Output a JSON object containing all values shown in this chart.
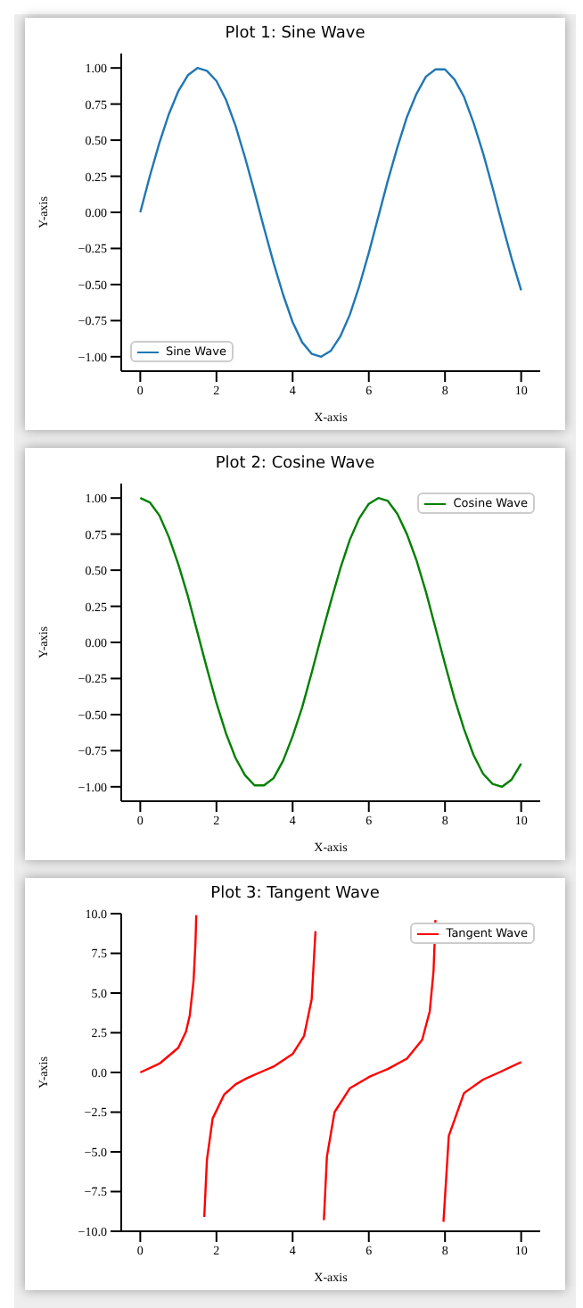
{
  "chart_data": [
    {
      "type": "line",
      "title": "Plot 1: Sine Wave",
      "xlabel": "X-axis",
      "ylabel": "Y-axis",
      "legend": "bottom left",
      "xlim": [
        -0.5,
        10.5
      ],
      "xticks": [
        0,
        2,
        4,
        6,
        8,
        10
      ],
      "ylim": [
        -1.1,
        1.1
      ],
      "yticks": [
        {
          "value": -1,
          "label": "−1.00"
        },
        {
          "value": -0.75,
          "label": "−0.75"
        },
        {
          "value": -0.5,
          "label": "−0.50"
        },
        {
          "value": -0.25,
          "label": "−0.25"
        },
        {
          "value": 0,
          "label": "0.00"
        },
        {
          "value": 0.25,
          "label": "0.25"
        },
        {
          "value": 0.5,
          "label": "0.50"
        },
        {
          "value": 0.75,
          "label": "0.75"
        },
        {
          "value": 1,
          "label": "1.00"
        }
      ],
      "series": [
        {
          "name": "Sine Wave",
          "color": "#1f77b4",
          "x": [
            0,
            0.25,
            0.5,
            0.75,
            1,
            1.25,
            1.5,
            1.75,
            2,
            2.25,
            2.5,
            2.75,
            3,
            3.25,
            3.5,
            3.75,
            4,
            4.25,
            4.5,
            4.75,
            5,
            5.25,
            5.5,
            5.75,
            6,
            6.25,
            6.5,
            6.75,
            7,
            7.25,
            7.5,
            7.75,
            8,
            8.25,
            8.5,
            8.75,
            9,
            9.25,
            9.5,
            9.75,
            10
          ],
          "values": [
            0,
            0.25,
            0.48,
            0.68,
            0.84,
            0.95,
            1.0,
            0.98,
            0.91,
            0.78,
            0.6,
            0.38,
            0.14,
            -0.11,
            -0.35,
            -0.57,
            -0.76,
            -0.9,
            -0.98,
            -1.0,
            -0.96,
            -0.86,
            -0.71,
            -0.51,
            -0.28,
            -0.03,
            0.22,
            0.45,
            0.66,
            0.82,
            0.94,
            0.99,
            0.99,
            0.92,
            0.8,
            0.62,
            0.41,
            0.17,
            -0.08,
            -0.32,
            -0.54
          ]
        }
      ]
    },
    {
      "type": "line",
      "title": "Plot 2: Cosine Wave",
      "xlabel": "X-axis",
      "ylabel": "Y-axis",
      "legend": "top right",
      "xlim": [
        -0.5,
        10.5
      ],
      "xticks": [
        0,
        2,
        4,
        6,
        8,
        10
      ],
      "ylim": [
        -1.1,
        1.1
      ],
      "yticks": [
        {
          "value": -1,
          "label": "−1.00"
        },
        {
          "value": -0.75,
          "label": "−0.75"
        },
        {
          "value": -0.5,
          "label": "−0.50"
        },
        {
          "value": -0.25,
          "label": "−0.25"
        },
        {
          "value": 0,
          "label": "0.00"
        },
        {
          "value": 0.25,
          "label": "0.25"
        },
        {
          "value": 0.5,
          "label": "0.50"
        },
        {
          "value": 0.75,
          "label": "0.75"
        },
        {
          "value": 1,
          "label": "1.00"
        }
      ],
      "series": [
        {
          "name": "Cosine Wave",
          "color": "#008000",
          "x": [
            0,
            0.25,
            0.5,
            0.75,
            1,
            1.25,
            1.5,
            1.75,
            2,
            2.25,
            2.5,
            2.75,
            3,
            3.25,
            3.5,
            3.75,
            4,
            4.25,
            4.5,
            4.75,
            5,
            5.25,
            5.5,
            5.75,
            6,
            6.25,
            6.5,
            6.75,
            7,
            7.25,
            7.5,
            7.75,
            8,
            8.25,
            8.5,
            8.75,
            9,
            9.25,
            9.5,
            9.75,
            10
          ],
          "values": [
            1,
            0.97,
            0.88,
            0.73,
            0.54,
            0.32,
            0.07,
            -0.18,
            -0.42,
            -0.63,
            -0.8,
            -0.92,
            -0.99,
            -0.99,
            -0.94,
            -0.82,
            -0.65,
            -0.45,
            -0.21,
            0.04,
            0.28,
            0.51,
            0.71,
            0.86,
            0.96,
            1.0,
            0.98,
            0.89,
            0.75,
            0.57,
            0.35,
            0.1,
            -0.15,
            -0.39,
            -0.6,
            -0.78,
            -0.91,
            -0.98,
            -1.0,
            -0.95,
            -0.84
          ]
        }
      ]
    },
    {
      "type": "line",
      "title": "Plot 3: Tangent Wave",
      "xlabel": "X-axis",
      "ylabel": "Y-axis",
      "legend": "top right",
      "xlim": [
        -0.5,
        10.5
      ],
      "xticks": [
        0,
        2,
        4,
        6,
        8,
        10
      ],
      "ylim": [
        -10,
        10
      ],
      "yticks": [
        {
          "value": -10,
          "label": "−10.0"
        },
        {
          "value": -7.5,
          "label": "−7.5"
        },
        {
          "value": -5,
          "label": "−5.0"
        },
        {
          "value": -2.5,
          "label": "−2.5"
        },
        {
          "value": 0,
          "label": "0.0"
        },
        {
          "value": 2.5,
          "label": "2.5"
        },
        {
          "value": 5,
          "label": "5.0"
        },
        {
          "value": 7.5,
          "label": "7.5"
        },
        {
          "value": 10,
          "label": "10.0"
        }
      ],
      "series": [
        {
          "name": "Tangent Wave",
          "color": "#ff0000",
          "x": [
            0,
            0.5,
            1,
            1.2,
            1.3,
            1.4,
            1.45,
            1.47,
            1.57,
            1.68,
            1.75,
            1.9,
            2.2,
            2.5,
            2.8,
            3.14,
            3.5,
            4,
            4.3,
            4.5,
            4.6,
            4.71,
            4.82,
            4.9,
            5.1,
            5.5,
            6,
            6.28,
            6.5,
            7,
            7.4,
            7.6,
            7.7,
            7.75,
            7.85,
            7.96,
            8.1,
            8.5,
            9,
            9.42,
            10
          ],
          "values": [
            0,
            0.55,
            1.56,
            2.57,
            3.6,
            5.8,
            8.2,
            9.9,
            null,
            -9.1,
            -5.5,
            -2.9,
            -1.4,
            -0.75,
            -0.36,
            0,
            0.37,
            1.16,
            2.3,
            4.6,
            8.9,
            null,
            -9.3,
            -5.3,
            -2.5,
            -1.0,
            -0.29,
            0,
            0.22,
            0.87,
            2.05,
            3.85,
            6.4,
            9.6,
            null,
            -9.4,
            -4.0,
            -1.3,
            -0.45,
            0,
            0.65
          ]
        }
      ]
    }
  ]
}
